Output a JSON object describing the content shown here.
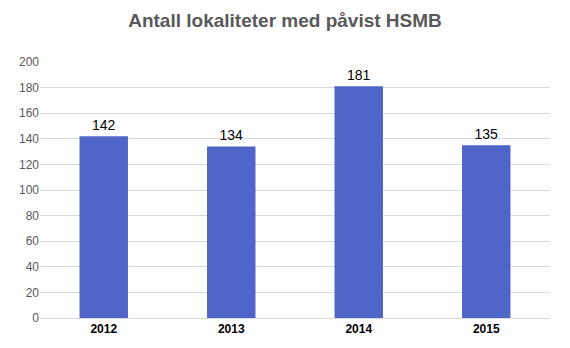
{
  "chart_data": {
    "type": "bar",
    "title": "Antall lokaliteter med påvist HSMB",
    "categories": [
      "2012",
      "2013",
      "2014",
      "2015"
    ],
    "values": [
      142,
      134,
      181,
      135
    ],
    "color": "#4f66c8",
    "ylim": [
      0,
      200
    ],
    "yticks": [
      0,
      20,
      40,
      60,
      80,
      100,
      120,
      140,
      160,
      180,
      200
    ],
    "grid": true,
    "data_labels": true
  }
}
